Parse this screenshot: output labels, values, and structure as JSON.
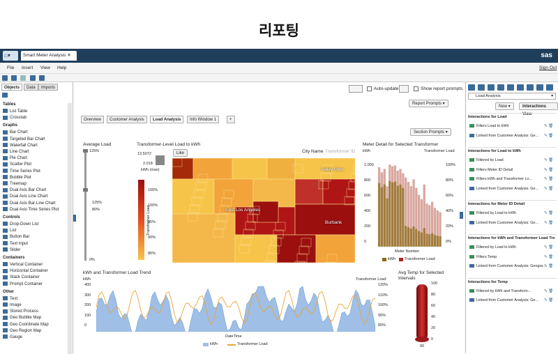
{
  "page_heading": "리포팅",
  "app": {
    "tab_title": "Smart Meter Analysis",
    "logo": "sas"
  },
  "menu": {
    "file": "File",
    "insert": "Insert",
    "view": "View",
    "help": "Help",
    "signout": "Sign Out"
  },
  "left": {
    "tabs": [
      "Objects",
      "Data",
      "Imports"
    ],
    "groups": [
      {
        "title": "Tables",
        "items": [
          "List Table",
          "Crosstab"
        ]
      },
      {
        "title": "Graphs",
        "items": [
          "Bar Chart",
          "Targeted Bar Chart",
          "Waterfall Chart",
          "Line Chart",
          "Pie Chart",
          "Scatter Plot",
          "Time Series Plot",
          "Bubble Plot",
          "Treemap",
          "Dual Axis Bar Chart",
          "Dual Axis Line Chart",
          "Dual Axis Bar-Line Chart",
          "Dual Axis Time Series Plot"
        ]
      },
      {
        "title": "Controls",
        "items": [
          "Drop-Down List",
          "List",
          "Button Bar",
          "Text Input",
          "Slider"
        ]
      },
      {
        "title": "Containers",
        "items": [
          "Vertical Container",
          "Horizontal Container",
          "Stack Container",
          "Prompt Container"
        ]
      },
      {
        "title": "Other",
        "items": [
          "Text",
          "Image",
          "Stored Process",
          "Geo Bubble Map",
          "Geo Coordinate Map",
          "Geo Region Map",
          "Gauge"
        ]
      }
    ]
  },
  "canvas": {
    "auto_update": "Auto-update",
    "show_prompts": "Show report prompts",
    "report_prompts": "Report Prompts",
    "section_prompts": "Section Prompts",
    "tabs": [
      "Overview",
      "Customer Analysis",
      "Load Analysis",
      "Info Window 1"
    ],
    "avg_load": {
      "title": "Average Load",
      "ticks": [
        "125%",
        "125%",
        "80%",
        "0%"
      ]
    },
    "treemap": {
      "title": "Transformer-Level Load to kWh",
      "city_label": "City Name",
      "tid_label": "Transformer ID",
      "legend_max": "13.5072",
      "legend_min": "2.018",
      "legend_unit": "kWh (max)",
      "legend_axis": "Transformer Load",
      "legend_ticks": [
        "105%",
        "100%",
        "95%",
        "90%",
        "85%"
      ],
      "like": "Like",
      "cities": [
        "Valley Glen",
        "East Los Angeles",
        "Burbank"
      ]
    },
    "meter": {
      "title": "Meter Detail for Selected Transformer",
      "ylabel": "kWh",
      "y2label": "Transformer Load",
      "yticks": [
        "1,000",
        "800",
        "600",
        "400",
        "200",
        "0"
      ],
      "y2ticks": [
        "100%",
        "80%",
        "60%",
        "40%",
        "20%",
        "0%"
      ],
      "xlabel": "Meter Number",
      "legend": [
        "kWh",
        "Transformer Load"
      ]
    },
    "trend": {
      "title": "kWh and Transformer Load Trend",
      "ylabel": "kWh",
      "y2label": "Transformer Load",
      "yticks": [
        "400",
        "300",
        "200",
        "100",
        "0"
      ],
      "y2ticks": [
        "120%",
        "110%",
        "100%",
        "90%",
        "80%"
      ],
      "xlabel": "DateTime",
      "legend": [
        "kWh",
        "Transformer Load"
      ]
    },
    "gauge": {
      "title": "Avg Temp for Selected Intervals",
      "ticks": [
        "100",
        "80",
        "60",
        "40",
        "20",
        "0"
      ],
      "value": "90"
    }
  },
  "right": {
    "selector": "Load Analysis",
    "new_btn": "New",
    "view_btn": "Interactions View",
    "sections": [
      {
        "title": "Interactions for Load",
        "items": [
          "Filters Load to kWh",
          "Linked from Customer Analysis: Ge..."
        ]
      },
      {
        "title": "Interactions for Load to kWh",
        "items": [
          "Filtered by Load",
          "Filters Meter ID Detail",
          "Filters kWh and Transformer Lo...",
          "Linked from Customer Analysis: Ge..."
        ]
      },
      {
        "title": "Interactions for Meter ID Detail",
        "items": [
          "Filtered by Load to kWh",
          "Linked from Customer Analysis: Ge..."
        ]
      },
      {
        "title": "Interactions for kWh and Transformer Load Tre",
        "items": [
          "Filtered by Load to kWh",
          "Filters Temp",
          "Linked from Customer Analysis: Geogra..."
        ]
      },
      {
        "title": "Interactions for Temp",
        "items": [
          "Filtered by kWh and Transform...",
          "Linked from Customer Analysis: Ge..."
        ]
      }
    ]
  },
  "colors": {
    "header": "#1f3e5a",
    "heat_low": "#f7c44a",
    "heat_high": "#9b0f0f"
  }
}
